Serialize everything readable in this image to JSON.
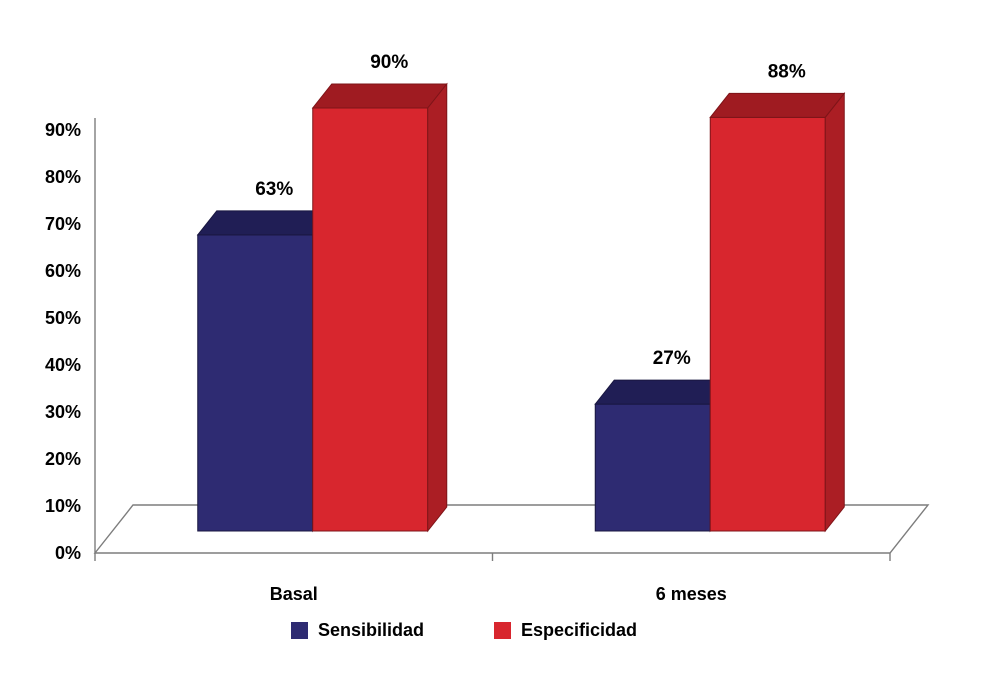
{
  "chart_data": {
    "type": "bar",
    "style": "3d-column",
    "categories": [
      "Basal",
      "6 meses"
    ],
    "series": [
      {
        "name": "Sensibilidad",
        "values": [
          63,
          27
        ],
        "color": "#2e2b72",
        "color_top": "#201e55",
        "color_side": "#262363",
        "color_edge": "#191740"
      },
      {
        "name": "Especificidad",
        "values": [
          90,
          88
        ],
        "color": "#d8262e",
        "color_top": "#9f1b21",
        "color_side": "#ab1e24",
        "color_edge": "#7e1418"
      }
    ],
    "value_suffix": "%",
    "data_labels": [
      "63%",
      "90%",
      "27%",
      "88%"
    ],
    "ylim": [
      0,
      90
    ],
    "ytick_step": 10,
    "ytick_labels": [
      "0%",
      "10%",
      "20%",
      "30%",
      "40%",
      "50%",
      "60%",
      "70%",
      "80%",
      "90%"
    ],
    "xlabel": "",
    "ylabel": "",
    "legend_position": "bottom",
    "grid": false,
    "axis_color": "#7d7d7d",
    "text_color": "#000000",
    "background": "#ffffff"
  }
}
